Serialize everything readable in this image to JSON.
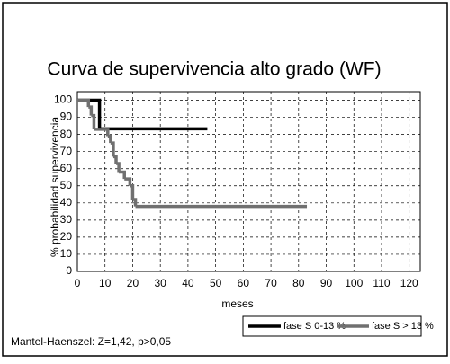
{
  "chart_data": {
    "type": "step",
    "title": "Curva de supervivencia alto grado (WF)",
    "x_label": "meses",
    "y_label": "% probabilidad supervivencia",
    "annotation": "Mantel-Haenszel: Z=1,42, p>0,05",
    "xlim": [
      0,
      124
    ],
    "ylim": [
      0,
      105
    ],
    "xticks": [
      0,
      10,
      20,
      30,
      40,
      50,
      60,
      70,
      80,
      90,
      100,
      110,
      120
    ],
    "yticks": [
      0,
      10,
      20,
      30,
      40,
      50,
      60,
      70,
      80,
      90,
      100
    ],
    "grid": true,
    "series": [
      {
        "name": "fase S 0-13 %",
        "color": "#000000",
        "x": [
          0,
          8,
          47
        ],
        "values": [
          100,
          83.3,
          83.3
        ]
      },
      {
        "name": "fase S > 13 %",
        "color": "#707070",
        "x": [
          0,
          4,
          5,
          6,
          11,
          12,
          13,
          14,
          15,
          17,
          19,
          20,
          21,
          83
        ],
        "values": [
          100,
          96,
          91,
          83,
          79,
          75,
          67,
          63,
          58,
          54,
          50,
          42,
          38,
          38
        ]
      }
    ]
  }
}
